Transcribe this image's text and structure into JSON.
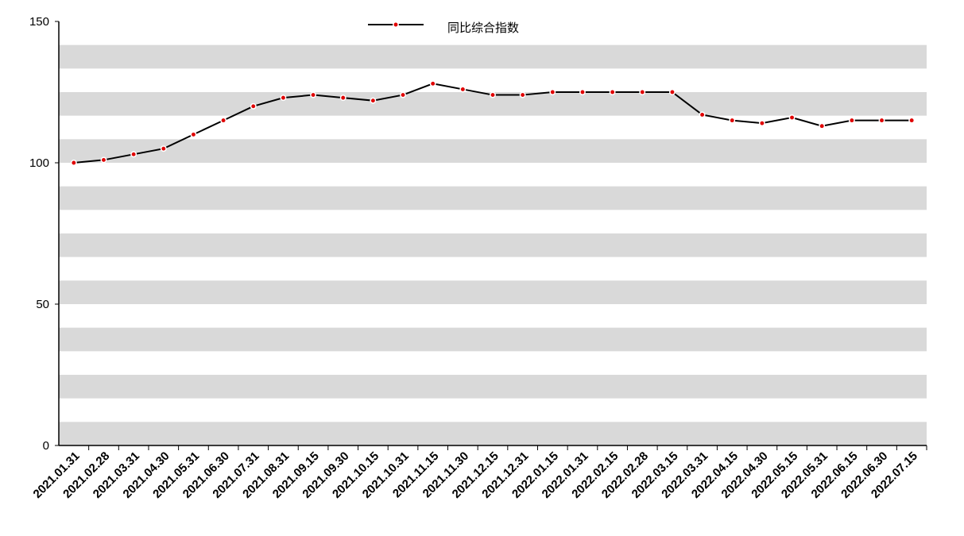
{
  "chart_data": {
    "type": "line",
    "categories": [
      "2021.01.31",
      "2021.02.28",
      "2021.03.31",
      "2021.04.30",
      "2021.05.31",
      "2021.06.30",
      "2021.07.31",
      "2021.08.31",
      "2021.09.15",
      "2021.09.30",
      "2021.10.15",
      "2021.10.31",
      "2021.11.15",
      "2021.11.30",
      "2021.12.15",
      "2021.12.31",
      "2022.01.15",
      "2022.01.31",
      "2022.02.15",
      "2022.02.28",
      "2022.03.15",
      "2022.03.31",
      "2022.04.15",
      "2022.04.30",
      "2022.05.15",
      "2022.05.31",
      "2022.06.15",
      "2022.06.30",
      "2022.07.15"
    ],
    "series": [
      {
        "name": "同比综合指数",
        "color": "#000000",
        "marker_color": "#e00000",
        "values": [
          100,
          101,
          103,
          105,
          110,
          115,
          120,
          123,
          124,
          123,
          122,
          124,
          128,
          126,
          124,
          124,
          125,
          125,
          125,
          125,
          125,
          117,
          115,
          114,
          116,
          113,
          115,
          115,
          115
        ]
      }
    ],
    "ylim": [
      0,
      150
    ],
    "yticks": [
      0,
      50,
      100,
      150
    ],
    "legend": "top"
  }
}
